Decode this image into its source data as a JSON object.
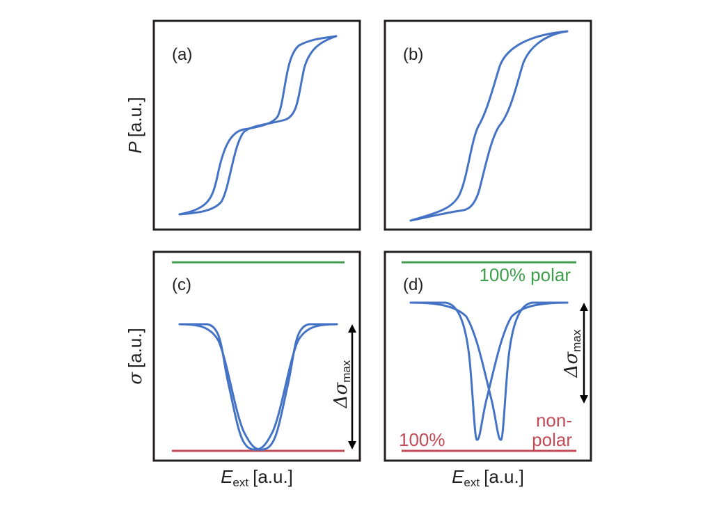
{
  "colors": {
    "curve": "#4472c4",
    "polar_line": "#3e9e4b",
    "nonpolar_line": "#c34a57",
    "frame": "#231f20"
  },
  "axes": {
    "p_symbol": "P",
    "p_unit": "[a.u.]",
    "sigma_symbol": "σ",
    "sigma_unit": "[a.u.]",
    "e_symbol": "E",
    "e_sub": "ext",
    "e_unit": "[a.u.]"
  },
  "annotations": {
    "delta_symbol": "Δσ",
    "delta_sub": "max",
    "polar_label": "100% polar",
    "nonpolar_line1": "non-",
    "nonpolar_line2": "polar",
    "nonpolar_prefix": "100%"
  },
  "chart_data": [
    {
      "type": "line",
      "panel": "(a)",
      "xlabel": "",
      "ylabel": "P [a.u.]",
      "xlim": [
        -1,
        1
      ],
      "ylim": [
        -1,
        1
      ],
      "series": [
        {
          "x": [
            -1.0,
            -0.85,
            -0.72,
            -0.62,
            -0.55,
            -0.45,
            -0.3,
            -0.15,
            0.0,
            0.15,
            0.3,
            0.4,
            0.5,
            0.6,
            0.72,
            0.85,
            1.0
          ],
          "y": [
            -1.0,
            -0.9,
            -0.72,
            -0.42,
            -0.22,
            -0.07,
            -0.02,
            0.0,
            0.02,
            0.06,
            0.1,
            0.3,
            0.62,
            0.84,
            0.92,
            0.96,
            1.0
          ]
        },
        {
          "x": [
            1.0,
            0.85,
            0.72,
            0.62,
            0.55,
            0.45,
            0.3,
            0.15,
            0.0,
            -0.15,
            -0.3,
            -0.4,
            -0.5,
            -0.6,
            -0.72,
            -0.85,
            -1.0
          ],
          "y": [
            1.0,
            0.9,
            0.72,
            0.42,
            0.22,
            0.07,
            0.02,
            0.0,
            -0.02,
            -0.06,
            -0.1,
            -0.3,
            -0.62,
            -0.84,
            -0.92,
            -0.96,
            -1.0
          ]
        }
      ]
    },
    {
      "type": "line",
      "panel": "(b)",
      "xlabel": "",
      "ylabel": "",
      "xlim": [
        -1,
        1
      ],
      "ylim": [
        -1,
        1
      ],
      "series": [
        {
          "x": [
            -1.0,
            -0.8,
            -0.6,
            -0.45,
            -0.35,
            -0.25,
            -0.15,
            -0.05,
            0.05,
            0.15,
            0.25,
            0.35,
            0.45,
            0.6,
            0.8,
            1.0
          ],
          "y": [
            -1.0,
            -0.94,
            -0.88,
            -0.8,
            -0.62,
            -0.38,
            -0.18,
            -0.05,
            0.12,
            0.38,
            0.68,
            0.86,
            0.93,
            0.97,
            0.99,
            1.0
          ]
        },
        {
          "x": [
            1.0,
            0.8,
            0.6,
            0.45,
            0.35,
            0.25,
            0.15,
            0.05,
            -0.05,
            -0.15,
            -0.25,
            -0.35,
            -0.45,
            -0.6,
            -0.8,
            -1.0
          ],
          "y": [
            1.0,
            0.94,
            0.88,
            0.8,
            0.62,
            0.38,
            0.18,
            0.05,
            -0.12,
            -0.38,
            -0.68,
            -0.86,
            -0.93,
            -0.97,
            -0.99,
            -1.0
          ]
        }
      ]
    },
    {
      "type": "line",
      "panel": "(c)",
      "xlabel": "E_ext [a.u.]",
      "ylabel": "σ [a.u.]",
      "xlim": [
        -1,
        1
      ],
      "ylim": [
        0,
        1
      ],
      "reference_lines": {
        "polar": 1.0,
        "nonpolar": 0.0
      },
      "series": [
        {
          "x": [
            -1.0,
            -0.85,
            -0.75,
            -0.65,
            -0.55,
            -0.45,
            -0.35,
            -0.25,
            -0.1,
            0.0,
            0.1,
            0.25,
            0.35,
            0.45,
            0.55,
            0.65,
            0.75,
            0.85,
            1.0
          ],
          "y": [
            0.68,
            0.68,
            0.6,
            0.45,
            0.25,
            0.1,
            0.03,
            0.02,
            0.01,
            0.0,
            0.06,
            0.22,
            0.36,
            0.5,
            0.6,
            0.66,
            0.68,
            0.68,
            0.68
          ]
        },
        {
          "x": [
            1.0,
            0.85,
            0.75,
            0.65,
            0.55,
            0.45,
            0.35,
            0.25,
            0.1,
            0.0,
            -0.1,
            -0.25,
            -0.35,
            -0.45,
            -0.55,
            -0.65,
            -0.75,
            -0.85,
            -1.0
          ],
          "y": [
            0.68,
            0.68,
            0.6,
            0.45,
            0.25,
            0.1,
            0.03,
            0.02,
            0.01,
            0.0,
            0.06,
            0.22,
            0.36,
            0.5,
            0.6,
            0.66,
            0.68,
            0.68,
            0.68
          ]
        }
      ]
    },
    {
      "type": "line",
      "panel": "(d)",
      "xlabel": "E_ext [a.u.]",
      "ylabel": "",
      "xlim": [
        -1,
        1
      ],
      "ylim": [
        0,
        1
      ],
      "reference_lines": {
        "polar": 1.0,
        "nonpolar": 0.0
      },
      "series": [
        {
          "x": [
            -1.0,
            -0.8,
            -0.65,
            -0.5,
            -0.38,
            -0.28,
            -0.2,
            -0.1,
            0.0,
            0.1,
            0.2,
            0.3,
            0.42,
            0.55,
            0.7,
            0.85,
            1.0
          ],
          "y": [
            0.8,
            0.8,
            0.75,
            0.6,
            0.4,
            0.2,
            0.06,
            0.3,
            0.52,
            0.65,
            0.72,
            0.76,
            0.79,
            0.8,
            0.8,
            0.8,
            0.8
          ]
        },
        {
          "x": [
            1.0,
            0.8,
            0.65,
            0.5,
            0.38,
            0.28,
            0.2,
            0.1,
            0.0,
            -0.1,
            -0.2,
            -0.3,
            -0.42,
            -0.55,
            -0.7,
            -0.85,
            -1.0
          ],
          "y": [
            0.8,
            0.8,
            0.75,
            0.6,
            0.4,
            0.2,
            0.06,
            0.3,
            0.52,
            0.65,
            0.72,
            0.76,
            0.79,
            0.8,
            0.8,
            0.8,
            0.8
          ]
        }
      ]
    }
  ]
}
